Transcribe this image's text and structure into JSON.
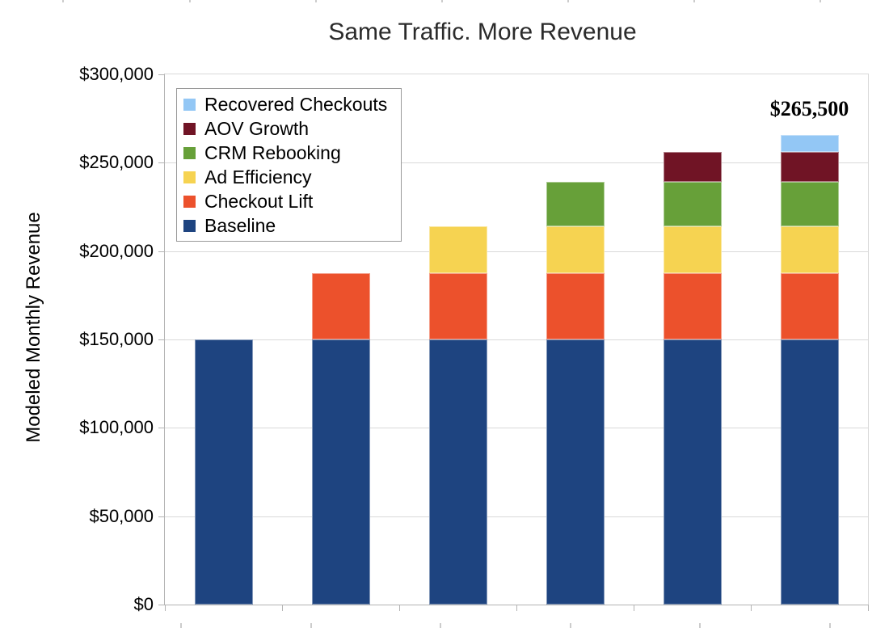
{
  "chart_data": {
    "type": "bar",
    "stacked": true,
    "title": "Same Traffic. More Revenue",
    "xlabel": "",
    "ylabel": "Modeled Monthly Revenue",
    "ylim": [
      0,
      300000
    ],
    "ytick_step": 50000,
    "ytick_labels": [
      "$0",
      "$50,000",
      "$100,000",
      "$150,000",
      "$200,000",
      "$250,000",
      "$300,000"
    ],
    "grid": true,
    "categories": [
      "",
      "",
      "",
      "",
      "",
      ""
    ],
    "series": [
      {
        "name": "Baseline",
        "color": "#1E4480",
        "values": [
          150000,
          150000,
          150000,
          150000,
          150000,
          150000
        ]
      },
      {
        "name": "Checkout Lift",
        "color": "#EC512C",
        "values": [
          0,
          37500,
          37500,
          37500,
          37500,
          37500
        ]
      },
      {
        "name": "Ad Efficiency",
        "color": "#F6D351",
        "values": [
          0,
          0,
          26500,
          26500,
          26500,
          26500
        ]
      },
      {
        "name": "CRM Rebooking",
        "color": "#67A039",
        "values": [
          0,
          0,
          0,
          25000,
          25000,
          25000
        ]
      },
      {
        "name": "AOV Growth",
        "color": "#701425",
        "values": [
          0,
          0,
          0,
          0,
          17000,
          17000
        ]
      },
      {
        "name": "Recovered Checkouts",
        "color": "#93C7F5",
        "values": [
          0,
          0,
          0,
          0,
          0,
          9500
        ]
      }
    ],
    "bar_totals": [
      150000,
      187500,
      214000,
      239000,
      256000,
      265500
    ],
    "legend": {
      "position": "top-left",
      "entries_top_to_bottom": [
        "Recovered Checkouts",
        "AOV Growth",
        "CRM Rebooking",
        "Ad Efficiency",
        "Checkout Lift",
        "Baseline"
      ]
    },
    "annotations": [
      {
        "text": "$265,500",
        "category_index": 5,
        "position": "above-bar"
      }
    ]
  }
}
